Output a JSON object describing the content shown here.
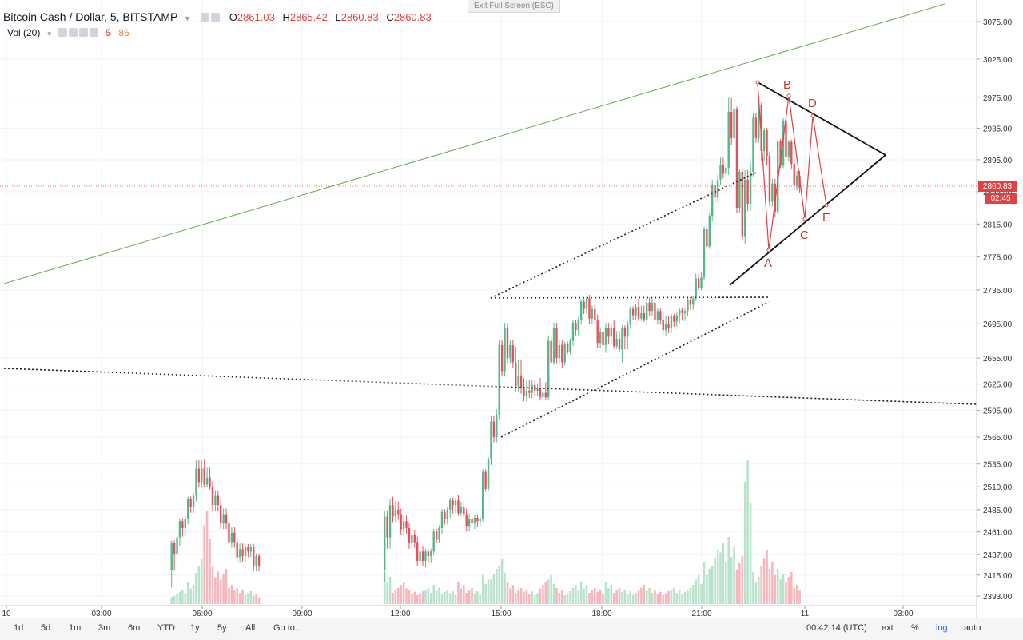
{
  "header": {
    "symbol": "Bitcoin Cash / Dollar, 5, BITSTAMP",
    "o_label": "O",
    "o_value": "2861.03",
    "h_label": "H",
    "h_value": "2865.42",
    "l_label": "L",
    "l_value": "2860.83",
    "c_label": "C",
    "c_value": "2860.83"
  },
  "volume_legend": {
    "label": "Vol (20)",
    "v1": "5",
    "v2": "86"
  },
  "exit_fullscreen": "Exit Full Screen (ESC)",
  "last_price": {
    "value": "2860.83",
    "timer": "02:45"
  },
  "colors": {
    "up": "#53b987",
    "down": "#eb4d5c",
    "up_vol": "#b9e2cd",
    "down_vol": "#f5b7bd",
    "pattern": "#e04141",
    "trend": "#6aa84f"
  },
  "chart_data": {
    "type": "candlestick",
    "title": "Bitcoin Cash / Dollar, 5, BITSTAMP",
    "y_ticks": [
      "3075.00",
      "3025.00",
      "2975.00",
      "2935.00",
      "2895.00",
      "2855.00",
      "2815.00",
      "2775.00",
      "2735.00",
      "2695.00",
      "2655.00",
      "2625.00",
      "2595.00",
      "2565.00",
      "2535.00",
      "2510.00",
      "2485.00",
      "2461.00",
      "2437.00",
      "2415.00",
      "2393.00"
    ],
    "x_ticks": [
      "10",
      "03:00",
      "06:00",
      "09:00",
      "12:00",
      "15:00",
      "18:00",
      "21:00",
      "11",
      "03:00"
    ],
    "y_scale": "log",
    "pattern_labels": [
      "A",
      "B",
      "C",
      "D",
      "E"
    ],
    "candles": [
      {
        "t": "05:00",
        "o": 2420,
        "h": 2460,
        "l": 2390,
        "c": 2455
      },
      {
        "t": "05:15",
        "o": 2455,
        "h": 2480,
        "l": 2440,
        "c": 2475
      },
      {
        "t": "05:30",
        "o": 2475,
        "h": 2505,
        "l": 2465,
        "c": 2500
      },
      {
        "t": "05:45",
        "o": 2500,
        "h": 2545,
        "l": 2490,
        "c": 2530
      },
      {
        "t": "06:00",
        "o": 2530,
        "h": 2548,
        "l": 2505,
        "c": 2510
      },
      {
        "t": "06:15",
        "o": 2510,
        "h": 2520,
        "l": 2480,
        "c": 2490
      },
      {
        "t": "06:30",
        "o": 2490,
        "h": 2500,
        "l": 2460,
        "c": 2470
      },
      {
        "t": "06:45",
        "o": 2470,
        "h": 2480,
        "l": 2440,
        "c": 2450
      },
      {
        "t": "07:00",
        "o": 2450,
        "h": 2460,
        "l": 2425,
        "c": 2435
      },
      {
        "t": "07:15",
        "o": 2435,
        "h": 2450,
        "l": 2425,
        "c": 2445
      },
      {
        "t": "07:30",
        "o": 2445,
        "h": 2450,
        "l": 2415,
        "c": 2425
      },
      {
        "t": "11:30",
        "o": 2420,
        "h": 2500,
        "l": 2400,
        "c": 2490
      },
      {
        "t": "11:45",
        "o": 2490,
        "h": 2505,
        "l": 2470,
        "c": 2480
      },
      {
        "t": "12:00",
        "o": 2480,
        "h": 2490,
        "l": 2455,
        "c": 2465
      },
      {
        "t": "12:15",
        "o": 2465,
        "h": 2475,
        "l": 2440,
        "c": 2450
      },
      {
        "t": "12:30",
        "o": 2450,
        "h": 2460,
        "l": 2420,
        "c": 2430
      },
      {
        "t": "12:45",
        "o": 2430,
        "h": 2445,
        "l": 2418,
        "c": 2440
      },
      {
        "t": "13:00",
        "o": 2440,
        "h": 2470,
        "l": 2435,
        "c": 2465
      },
      {
        "t": "13:15",
        "o": 2465,
        "h": 2490,
        "l": 2455,
        "c": 2485
      },
      {
        "t": "13:30",
        "o": 2485,
        "h": 2500,
        "l": 2470,
        "c": 2495
      },
      {
        "t": "13:45",
        "o": 2495,
        "h": 2505,
        "l": 2475,
        "c": 2480
      },
      {
        "t": "14:00",
        "o": 2480,
        "h": 2490,
        "l": 2460,
        "c": 2470
      },
      {
        "t": "14:15",
        "o": 2470,
        "h": 2480,
        "l": 2460,
        "c": 2475
      },
      {
        "t": "14:30",
        "o": 2475,
        "h": 2545,
        "l": 2470,
        "c": 2540
      },
      {
        "t": "14:45",
        "o": 2540,
        "h": 2600,
        "l": 2530,
        "c": 2590
      },
      {
        "t": "15:00",
        "o": 2590,
        "h": 2700,
        "l": 2580,
        "c": 2690
      },
      {
        "t": "15:15",
        "o": 2690,
        "h": 2700,
        "l": 2640,
        "c": 2650
      },
      {
        "t": "15:30",
        "o": 2650,
        "h": 2680,
        "l": 2610,
        "c": 2620
      },
      {
        "t": "15:45",
        "o": 2620,
        "h": 2640,
        "l": 2605,
        "c": 2615
      },
      {
        "t": "16:00",
        "o": 2615,
        "h": 2630,
        "l": 2605,
        "c": 2620
      },
      {
        "t": "16:15",
        "o": 2620,
        "h": 2640,
        "l": 2605,
        "c": 2610
      },
      {
        "t": "16:30",
        "o": 2610,
        "h": 2700,
        "l": 2605,
        "c": 2690
      },
      {
        "t": "16:45",
        "o": 2690,
        "h": 2700,
        "l": 2640,
        "c": 2650
      },
      {
        "t": "17:00",
        "o": 2650,
        "h": 2680,
        "l": 2645,
        "c": 2675
      },
      {
        "t": "17:15",
        "o": 2675,
        "h": 2705,
        "l": 2665,
        "c": 2700
      },
      {
        "t": "17:30",
        "o": 2700,
        "h": 2730,
        "l": 2690,
        "c": 2725
      },
      {
        "t": "17:45",
        "o": 2725,
        "h": 2732,
        "l": 2690,
        "c": 2700
      },
      {
        "t": "18:00",
        "o": 2700,
        "h": 2710,
        "l": 2660,
        "c": 2670
      },
      {
        "t": "18:15",
        "o": 2670,
        "h": 2700,
        "l": 2655,
        "c": 2690
      },
      {
        "t": "18:30",
        "o": 2690,
        "h": 2705,
        "l": 2660,
        "c": 2665
      },
      {
        "t": "18:45",
        "o": 2665,
        "h": 2700,
        "l": 2640,
        "c": 2695
      },
      {
        "t": "19:00",
        "o": 2695,
        "h": 2720,
        "l": 2685,
        "c": 2715
      },
      {
        "t": "19:15",
        "o": 2715,
        "h": 2730,
        "l": 2695,
        "c": 2700
      },
      {
        "t": "19:30",
        "o": 2700,
        "h": 2730,
        "l": 2690,
        "c": 2720
      },
      {
        "t": "19:45",
        "o": 2720,
        "h": 2725,
        "l": 2690,
        "c": 2700
      },
      {
        "t": "20:00",
        "o": 2700,
        "h": 2715,
        "l": 2680,
        "c": 2690
      },
      {
        "t": "20:15",
        "o": 2690,
        "h": 2710,
        "l": 2680,
        "c": 2705
      },
      {
        "t": "20:30",
        "o": 2705,
        "h": 2715,
        "l": 2690,
        "c": 2710
      },
      {
        "t": "20:45",
        "o": 2710,
        "h": 2730,
        "l": 2700,
        "c": 2725
      },
      {
        "t": "21:00",
        "o": 2725,
        "h": 2760,
        "l": 2720,
        "c": 2750
      },
      {
        "t": "21:15",
        "o": 2750,
        "h": 2830,
        "l": 2745,
        "c": 2825
      },
      {
        "t": "21:30",
        "o": 2825,
        "h": 2880,
        "l": 2815,
        "c": 2870
      },
      {
        "t": "21:45",
        "o": 2870,
        "h": 2900,
        "l": 2860,
        "c": 2885
      },
      {
        "t": "22:00",
        "o": 2885,
        "h": 2990,
        "l": 2870,
        "c": 2960
      },
      {
        "t": "22:15",
        "o": 2960,
        "h": 2965,
        "l": 2790,
        "c": 2800
      },
      {
        "t": "22:30",
        "o": 2800,
        "h": 2900,
        "l": 2785,
        "c": 2880
      },
      {
        "t": "22:45",
        "o": 2880,
        "h": 2975,
        "l": 2870,
        "c": 2965
      },
      {
        "t": "23:00",
        "o": 2965,
        "h": 2970,
        "l": 2880,
        "c": 2900
      },
      {
        "t": "23:15",
        "o": 2900,
        "h": 2910,
        "l": 2820,
        "c": 2830
      },
      {
        "t": "23:30",
        "o": 2830,
        "h": 2950,
        "l": 2825,
        "c": 2945
      },
      {
        "t": "23:45",
        "o": 2945,
        "h": 2950,
        "l": 2880,
        "c": 2890
      },
      {
        "t": "00:00",
        "o": 2890,
        "h": 2900,
        "l": 2850,
        "c": 2860
      }
    ],
    "volume": [
      6,
      9,
      14,
      28,
      58,
      24,
      22,
      12,
      10,
      8,
      6,
      20,
      10,
      14,
      9,
      8,
      10,
      12,
      9,
      8,
      14,
      10,
      8,
      18,
      22,
      28,
      14,
      10,
      9,
      8,
      14,
      18,
      10,
      8,
      12,
      14,
      10,
      9,
      14,
      10,
      9,
      8,
      12,
      10,
      9,
      8,
      10,
      9,
      12,
      18,
      26,
      34,
      38,
      42,
      30,
      90,
      20,
      34,
      26,
      22,
      20,
      12
    ]
  },
  "bottombar": {
    "ranges": [
      "1d",
      "5d",
      "1m",
      "3m",
      "6m",
      "YTD",
      "1y",
      "5y",
      "All"
    ],
    "goto": "Go to...",
    "clock": "00:42:14 (UTC)",
    "ext": "ext",
    "pct": "%",
    "log": "log",
    "auto": "auto"
  }
}
